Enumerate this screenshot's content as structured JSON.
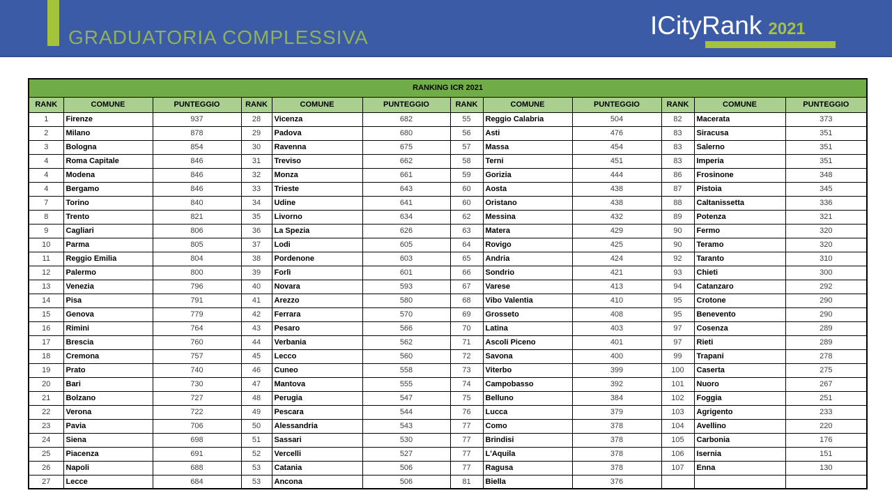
{
  "banner": {
    "title": "GRADUATORIA COMPLESSIVA",
    "logo_text": "ICityRank",
    "logo_year": "2021"
  },
  "colors": {
    "banner_bg": "#3C5BA6",
    "accent_green": "#A4C23C",
    "title_green": "#8FB258",
    "table_title_bg": "#70AD47",
    "table_header_bg": "#A9D08E"
  },
  "table": {
    "title": "RANKING ICR 2021",
    "column_headers": [
      "RANK",
      "COMUNE",
      "PUNTEGGIO"
    ],
    "groups": [
      {
        "rows": [
          [
            "1",
            "Firenze",
            "937"
          ],
          [
            "2",
            "Milano",
            "878"
          ],
          [
            "3",
            "Bologna",
            "854"
          ],
          [
            "4",
            "Roma Capitale",
            "846"
          ],
          [
            "4",
            "Modena",
            "846"
          ],
          [
            "4",
            "Bergamo",
            "846"
          ],
          [
            "7",
            "Torino",
            "840"
          ],
          [
            "8",
            "Trento",
            "821"
          ],
          [
            "9",
            "Cagliari",
            "806"
          ],
          [
            "10",
            "Parma",
            "805"
          ],
          [
            "11",
            "Reggio Emilia",
            "804"
          ],
          [
            "12",
            "Palermo",
            "800"
          ],
          [
            "13",
            "Venezia",
            "796"
          ],
          [
            "14",
            "Pisa",
            "791"
          ],
          [
            "15",
            "Genova",
            "779"
          ],
          [
            "16",
            "Rimini",
            "764"
          ],
          [
            "17",
            "Brescia",
            "760"
          ],
          [
            "18",
            "Cremona",
            "757"
          ],
          [
            "19",
            "Prato",
            "740"
          ],
          [
            "20",
            "Bari",
            "730"
          ],
          [
            "21",
            "Bolzano",
            "727"
          ],
          [
            "22",
            "Verona",
            "722"
          ],
          [
            "23",
            "Pavia",
            "706"
          ],
          [
            "24",
            "Siena",
            "698"
          ],
          [
            "25",
            "Piacenza",
            "691"
          ],
          [
            "26",
            "Napoli",
            "688"
          ],
          [
            "27",
            "Lecce",
            "684"
          ]
        ]
      },
      {
        "rows": [
          [
            "28",
            "Vicenza",
            "682"
          ],
          [
            "29",
            "Padova",
            "680"
          ],
          [
            "30",
            "Ravenna",
            "675"
          ],
          [
            "31",
            "Treviso",
            "662"
          ],
          [
            "32",
            "Monza",
            "661"
          ],
          [
            "33",
            "Trieste",
            "643"
          ],
          [
            "34",
            "Udine",
            "641"
          ],
          [
            "35",
            "Livorno",
            "634"
          ],
          [
            "36",
            "La Spezia",
            "626"
          ],
          [
            "37",
            "Lodi",
            "605"
          ],
          [
            "38",
            "Pordenone",
            "603"
          ],
          [
            "39",
            "Forlì",
            "601"
          ],
          [
            "40",
            "Novara",
            "593"
          ],
          [
            "41",
            "Arezzo",
            "580"
          ],
          [
            "42",
            "Ferrara",
            "570"
          ],
          [
            "43",
            "Pesaro",
            "566"
          ],
          [
            "44",
            "Verbania",
            "562"
          ],
          [
            "45",
            "Lecco",
            "560"
          ],
          [
            "46",
            "Cuneo",
            "558"
          ],
          [
            "47",
            "Mantova",
            "555"
          ],
          [
            "48",
            "Perugia",
            "547"
          ],
          [
            "49",
            "Pescara",
            "544"
          ],
          [
            "50",
            "Alessandria",
            "543"
          ],
          [
            "51",
            "Sassari",
            "530"
          ],
          [
            "52",
            "Vercelli",
            "527"
          ],
          [
            "53",
            "Catania",
            "506"
          ],
          [
            "53",
            "Ancona",
            "506"
          ]
        ]
      },
      {
        "rows": [
          [
            "55",
            "Reggio Calabria",
            "504"
          ],
          [
            "56",
            "Asti",
            "476"
          ],
          [
            "57",
            "Massa",
            "454"
          ],
          [
            "58",
            "Terni",
            "451"
          ],
          [
            "59",
            "Gorizia",
            "444"
          ],
          [
            "60",
            "Aosta",
            "438"
          ],
          [
            "60",
            "Oristano",
            "438"
          ],
          [
            "62",
            "Messina",
            "432"
          ],
          [
            "63",
            "Matera",
            "429"
          ],
          [
            "64",
            "Rovigo",
            "425"
          ],
          [
            "65",
            "Andria",
            "424"
          ],
          [
            "66",
            "Sondrio",
            "421"
          ],
          [
            "67",
            "Varese",
            "413"
          ],
          [
            "68",
            "Vibo Valentia",
            "410"
          ],
          [
            "69",
            "Grosseto",
            "408"
          ],
          [
            "70",
            "Latina",
            "403"
          ],
          [
            "71",
            "Ascoli Piceno",
            "401"
          ],
          [
            "72",
            "Savona",
            "400"
          ],
          [
            "73",
            "Viterbo",
            "399"
          ],
          [
            "74",
            "Campobasso",
            "392"
          ],
          [
            "75",
            "Belluno",
            "384"
          ],
          [
            "76",
            "Lucca",
            "379"
          ],
          [
            "77",
            "Como",
            "378"
          ],
          [
            "77",
            "Brindisi",
            "378"
          ],
          [
            "77",
            "L'Aquila",
            "378"
          ],
          [
            "77",
            "Ragusa",
            "378"
          ],
          [
            "81",
            "Biella",
            "376"
          ]
        ]
      },
      {
        "rows": [
          [
            "82",
            "Macerata",
            "373"
          ],
          [
            "83",
            "Siracusa",
            "351"
          ],
          [
            "83",
            "Salerno",
            "351"
          ],
          [
            "83",
            "Imperia",
            "351"
          ],
          [
            "86",
            "Frosinone",
            "348"
          ],
          [
            "87",
            "Pistoia",
            "345"
          ],
          [
            "88",
            "Caltanissetta",
            "336"
          ],
          [
            "89",
            "Potenza",
            "321"
          ],
          [
            "90",
            "Fermo",
            "320"
          ],
          [
            "90",
            "Teramo",
            "320"
          ],
          [
            "92",
            "Taranto",
            "310"
          ],
          [
            "93",
            "Chieti",
            "300"
          ],
          [
            "94",
            "Catanzaro",
            "292"
          ],
          [
            "95",
            "Crotone",
            "290"
          ],
          [
            "95",
            "Benevento",
            "290"
          ],
          [
            "97",
            "Cosenza",
            "289"
          ],
          [
            "97",
            "Rieti",
            "289"
          ],
          [
            "99",
            "Trapani",
            "278"
          ],
          [
            "100",
            "Caserta",
            "275"
          ],
          [
            "101",
            "Nuoro",
            "267"
          ],
          [
            "102",
            "Foggia",
            "251"
          ],
          [
            "103",
            "Agrigento",
            "233"
          ],
          [
            "104",
            "Avellino",
            "220"
          ],
          [
            "105",
            "Carbonia",
            "176"
          ],
          [
            "106",
            "Isernia",
            "151"
          ],
          [
            "107",
            "Enna",
            "130"
          ],
          [
            "",
            "",
            ""
          ]
        ]
      }
    ]
  }
}
